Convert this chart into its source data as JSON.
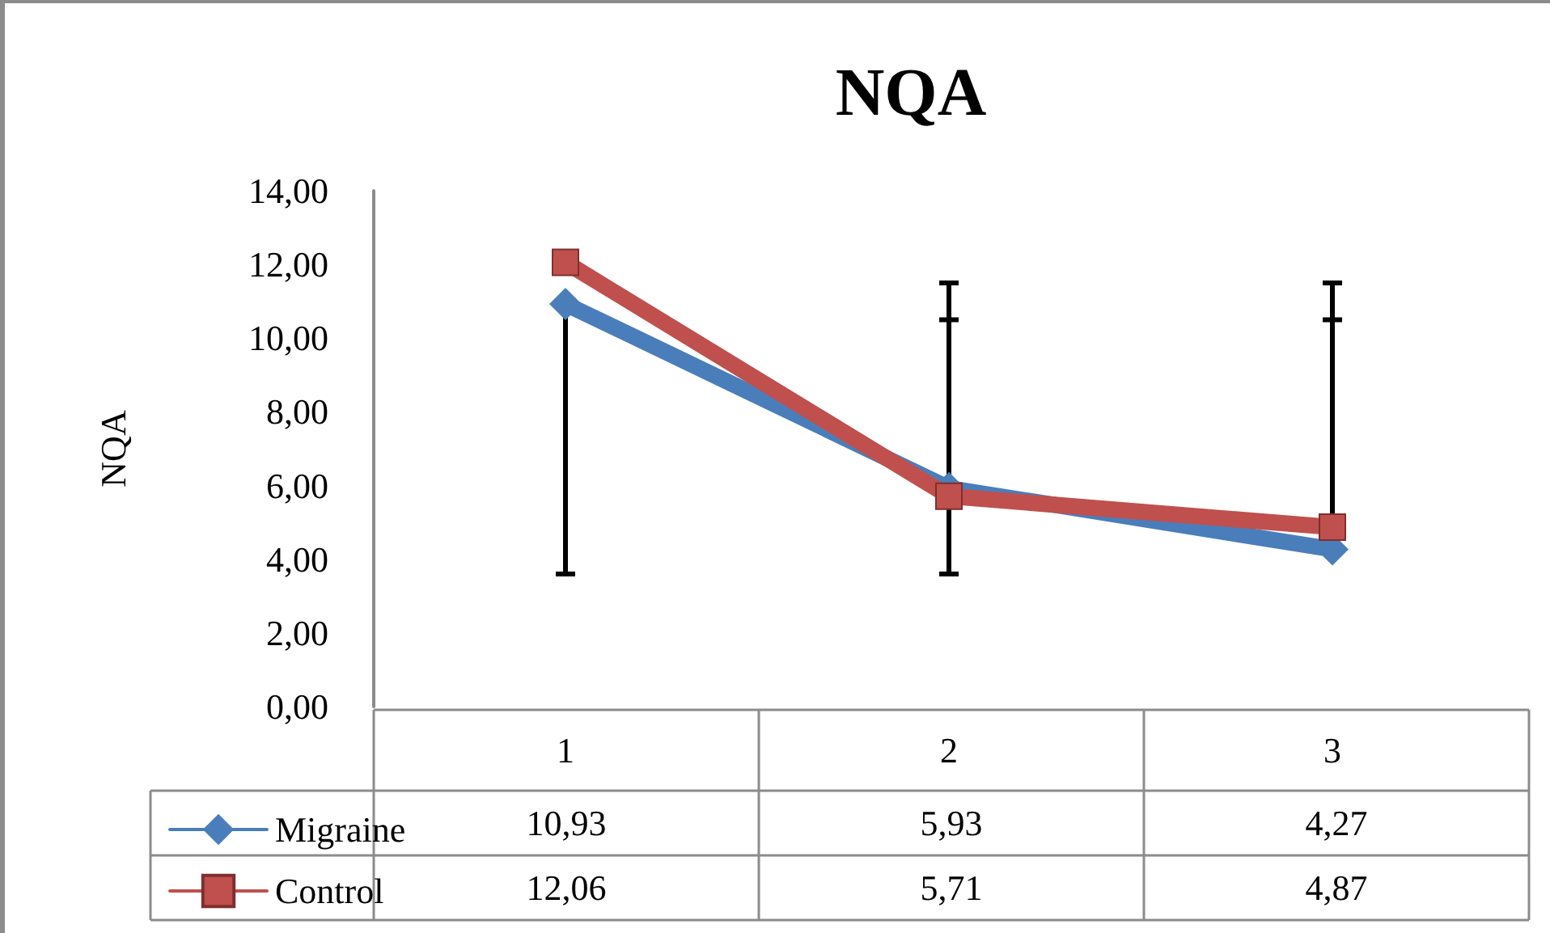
{
  "chart_data": {
    "type": "line",
    "title": "NQA",
    "ylabel": "NQA",
    "categories": [
      "1",
      "2",
      "3"
    ],
    "series": [
      {
        "name": "Migraine",
        "color": "#4a7ebb",
        "marker": "diamond",
        "values": [
          10.93,
          5.93,
          4.27
        ],
        "value_labels": [
          "10,93",
          "5,93",
          "4,27"
        ],
        "errors": [
          [
            3.6,
            10.93
          ],
          [
            3.6,
            11.5
          ],
          [
            4.27,
            11.5
          ]
        ]
      },
      {
        "name": "Control",
        "color": "#c0504d",
        "marker": "square",
        "values": [
          12.06,
          5.71,
          4.87
        ],
        "value_labels": [
          "12,06",
          "5,71",
          "4,87"
        ],
        "errors": [
          null,
          [
            5.71,
            10.5
          ],
          [
            4.87,
            10.5
          ]
        ]
      }
    ],
    "ylim": [
      0,
      14
    ],
    "yticks": [
      {
        "value": 0,
        "label": "0,00"
      },
      {
        "value": 2,
        "label": "2,00"
      },
      {
        "value": 4,
        "label": "4,00"
      },
      {
        "value": 6,
        "label": "6,00"
      },
      {
        "value": 8,
        "label": "8,00"
      },
      {
        "value": 10,
        "label": "10,00"
      },
      {
        "value": 12,
        "label": "12,00"
      },
      {
        "value": 14,
        "label": "14,00"
      }
    ],
    "grid": false,
    "legend": "bottom left",
    "line_style": "solid"
  }
}
